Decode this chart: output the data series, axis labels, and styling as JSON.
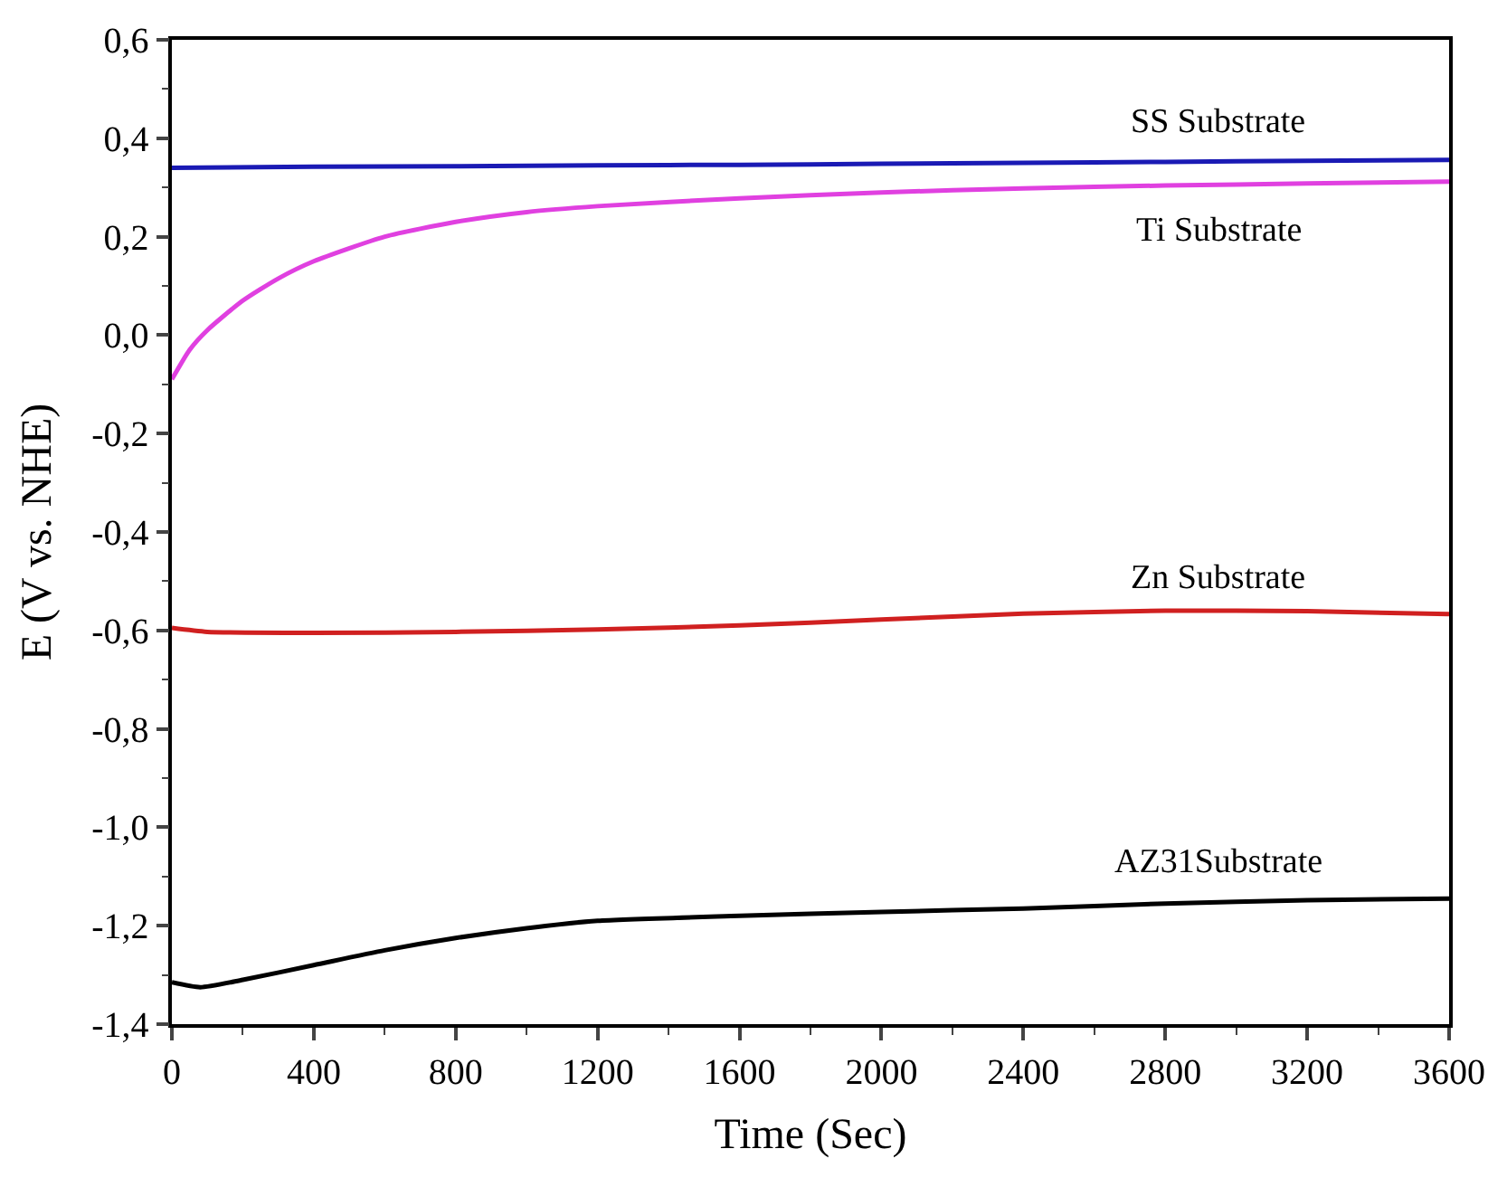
{
  "chart_data": {
    "type": "line",
    "xlabel": "Time (Sec)",
    "ylabel": "E (V vs. NHE)",
    "xlim": [
      0,
      3600
    ],
    "xticks": [
      0,
      400,
      800,
      1200,
      1600,
      2000,
      2400,
      2800,
      3200,
      3600
    ],
    "ylim": [
      -1.4,
      0.6
    ],
    "yticks": [
      {
        "value": -1.4,
        "label": "-1,4"
      },
      {
        "value": -1.2,
        "label": "-1,2"
      },
      {
        "value": -1.0,
        "label": "-1,0"
      },
      {
        "value": -0.8,
        "label": "-0,8"
      },
      {
        "value": -0.6,
        "label": "-0,6"
      },
      {
        "value": -0.4,
        "label": "-0,4"
      },
      {
        "value": -0.2,
        "label": "-0,2"
      },
      {
        "value": 0.0,
        "label": "0,0"
      },
      {
        "value": 0.2,
        "label": "0,2"
      },
      {
        "value": 0.4,
        "label": "0,4"
      },
      {
        "value": 0.6,
        "label": "0,6"
      }
    ],
    "legend": false,
    "marker": "none",
    "line_style": "solid",
    "series": [
      {
        "name": "SS Substrate",
        "color": "#1a1ab4",
        "x": [
          0,
          400,
          800,
          1200,
          1600,
          2000,
          2400,
          2800,
          3200,
          3600
        ],
        "values": [
          0.34,
          0.342,
          0.343,
          0.345,
          0.346,
          0.348,
          0.35,
          0.352,
          0.354,
          0.356
        ]
      },
      {
        "name": "Ti Substrate",
        "color": "#e040e0",
        "x": [
          0,
          50,
          100,
          200,
          300,
          400,
          600,
          800,
          1000,
          1200,
          1600,
          2000,
          2400,
          2800,
          3200,
          3600
        ],
        "values": [
          -0.09,
          -0.03,
          0.01,
          0.07,
          0.115,
          0.15,
          0.2,
          0.23,
          0.25,
          0.262,
          0.278,
          0.29,
          0.298,
          0.304,
          0.308,
          0.312
        ]
      },
      {
        "name": "Zn Substrate",
        "color": "#d02020",
        "x": [
          0,
          100,
          400,
          800,
          1200,
          1600,
          2000,
          2400,
          2800,
          3200,
          3600
        ],
        "values": [
          -0.595,
          -0.603,
          -0.605,
          -0.603,
          -0.598,
          -0.59,
          -0.578,
          -0.566,
          -0.56,
          -0.561,
          -0.567
        ]
      },
      {
        "name": "AZ31Substrate",
        "color": "#000000",
        "x": [
          0,
          80,
          200,
          400,
          600,
          800,
          1000,
          1200,
          1600,
          2000,
          2400,
          2800,
          3200,
          3600
        ],
        "values": [
          -1.315,
          -1.325,
          -1.31,
          -1.28,
          -1.25,
          -1.225,
          -1.205,
          -1.19,
          -1.18,
          -1.172,
          -1.165,
          -1.155,
          -1.148,
          -1.145
        ]
      }
    ]
  }
}
